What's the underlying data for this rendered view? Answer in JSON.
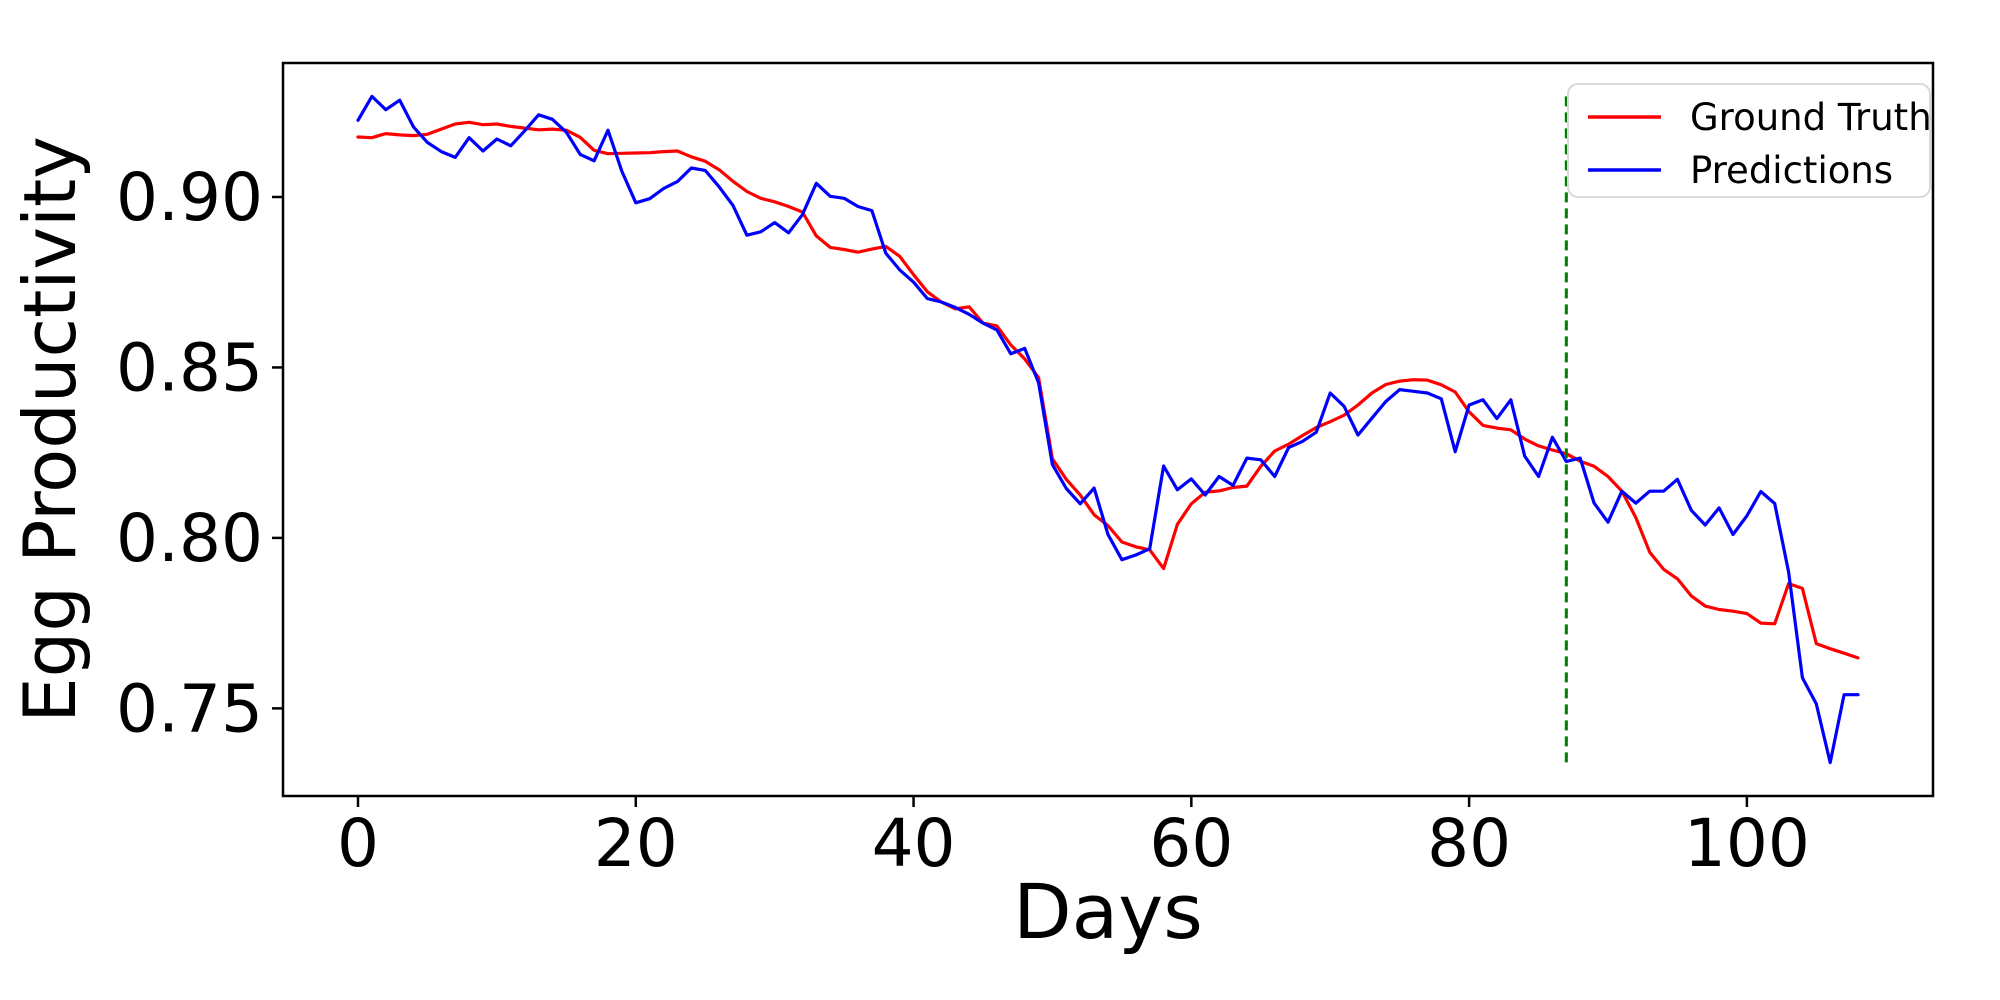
{
  "figure": {
    "xlabel": "Days",
    "ylabel": "Egg Productivity",
    "background": "#ffffff"
  },
  "chart_data": {
    "type": "line",
    "title": "",
    "xlabel": "Days",
    "ylabel": "Egg Productivity",
    "grid": false,
    "legend_position": "upper right",
    "xlim": [
      -5.4,
      113.4
    ],
    "ylim": [
      0.7243,
      0.9393
    ],
    "x_ticks": [
      0,
      20,
      40,
      60,
      80,
      100
    ],
    "x_tick_labels": [
      "0",
      "20",
      "40",
      "60",
      "80",
      "100"
    ],
    "y_ticks": [
      0.9,
      0.85,
      0.8,
      0.75
    ],
    "y_tick_labels": [
      "0.90",
      "0.85",
      "0.80",
      "0.75"
    ],
    "vline": {
      "x": 87,
      "ymin": 0.7341,
      "ymax": 0.9295,
      "color": "#008000",
      "style": "dashed"
    },
    "x": [
      0,
      1,
      2,
      3,
      4,
      5,
      6,
      7,
      8,
      9,
      10,
      11,
      12,
      13,
      14,
      15,
      16,
      17,
      18,
      19,
      20,
      21,
      22,
      23,
      24,
      25,
      26,
      27,
      28,
      29,
      30,
      31,
      32,
      33,
      34,
      35,
      36,
      37,
      38,
      39,
      40,
      41,
      42,
      43,
      44,
      45,
      46,
      47,
      48,
      49,
      50,
      51,
      52,
      53,
      54,
      55,
      56,
      57,
      58,
      59,
      60,
      61,
      62,
      63,
      64,
      65,
      66,
      67,
      68,
      69,
      70,
      71,
      72,
      73,
      74,
      75,
      76,
      77,
      78,
      79,
      80,
      81,
      82,
      83,
      84,
      85,
      86,
      87,
      88,
      89,
      90,
      91,
      92,
      93,
      94,
      95,
      96,
      97,
      98,
      99,
      100,
      101,
      102,
      103,
      104,
      105,
      106,
      107,
      108
    ],
    "series": [
      {
        "name": "Ground Truth",
        "color": "#ff0000",
        "values": [
          0.9176,
          0.9174,
          0.9186,
          0.9182,
          0.918,
          0.9184,
          0.9199,
          0.9214,
          0.9219,
          0.9212,
          0.9214,
          0.9207,
          0.9202,
          0.9197,
          0.9199,
          0.9196,
          0.9175,
          0.9137,
          0.9127,
          0.9128,
          0.9129,
          0.913,
          0.9133,
          0.9135,
          0.9118,
          0.9105,
          0.908,
          0.9046,
          0.9016,
          0.8996,
          0.8986,
          0.8972,
          0.8956,
          0.8886,
          0.8852,
          0.8846,
          0.8838,
          0.8847,
          0.8855,
          0.8826,
          0.8772,
          0.8722,
          0.8692,
          0.8672,
          0.8678,
          0.863,
          0.8622,
          0.8566,
          0.8525,
          0.847,
          0.8232,
          0.8172,
          0.8126,
          0.8068,
          0.8036,
          0.7988,
          0.7974,
          0.7965,
          0.791,
          0.804,
          0.81,
          0.8134,
          0.8138,
          0.8148,
          0.8152,
          0.821,
          0.8255,
          0.8275,
          0.83,
          0.8324,
          0.8341,
          0.836,
          0.839,
          0.8425,
          0.845,
          0.846,
          0.8464,
          0.8463,
          0.8449,
          0.8428,
          0.837,
          0.833,
          0.8322,
          0.8317,
          0.829,
          0.827,
          0.8258,
          0.8247,
          0.8225,
          0.821,
          0.818,
          0.8137,
          0.806,
          0.7958,
          0.7908,
          0.788,
          0.783,
          0.78,
          0.779,
          0.7785,
          0.7778,
          0.775,
          0.7748,
          0.7866,
          0.7852,
          0.769,
          0.7675,
          0.7662,
          0.7648
        ]
      },
      {
        "name": "Predictions",
        "color": "#0000ff",
        "values": [
          0.9225,
          0.9295,
          0.9256,
          0.9284,
          0.9205,
          0.916,
          0.9133,
          0.9116,
          0.9174,
          0.9135,
          0.917,
          0.915,
          0.9194,
          0.9241,
          0.9228,
          0.919,
          0.9125,
          0.9106,
          0.9196,
          0.9075,
          0.8983,
          0.8995,
          0.9025,
          0.9045,
          0.9085,
          0.9078,
          0.903,
          0.8975,
          0.8888,
          0.8898,
          0.8925,
          0.8895,
          0.8948,
          0.904,
          0.9002,
          0.8996,
          0.8972,
          0.896,
          0.8835,
          0.8786,
          0.875,
          0.8702,
          0.8692,
          0.8676,
          0.8656,
          0.863,
          0.861,
          0.854,
          0.8556,
          0.8455,
          0.8215,
          0.8145,
          0.81,
          0.8146,
          0.801,
          0.7936,
          0.795,
          0.7968,
          0.8211,
          0.8141,
          0.8173,
          0.8126,
          0.818,
          0.8154,
          0.8234,
          0.8229,
          0.818,
          0.8265,
          0.8283,
          0.831,
          0.8425,
          0.8386,
          0.8302,
          0.8351,
          0.84,
          0.8435,
          0.843,
          0.8425,
          0.8408,
          0.8253,
          0.839,
          0.8405,
          0.835,
          0.8405,
          0.824,
          0.818,
          0.8295,
          0.8224,
          0.8234,
          0.8102,
          0.8046,
          0.8137,
          0.8102,
          0.8137,
          0.8137,
          0.8172,
          0.8081,
          0.8038,
          0.8088,
          0.801,
          0.8065,
          0.8136,
          0.8101,
          0.79,
          0.759,
          0.7513,
          0.7341,
          0.754,
          0.754
        ]
      }
    ]
  },
  "legend": {
    "items": [
      {
        "label": "Ground Truth",
        "color": "#ff0000"
      },
      {
        "label": "Predictions",
        "color": "#0000ff"
      }
    ]
  }
}
